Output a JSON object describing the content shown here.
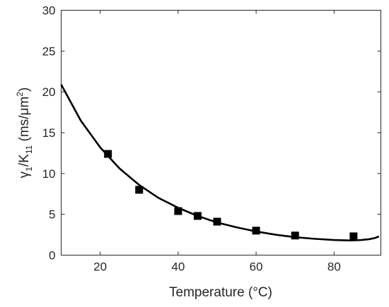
{
  "chart_data": {
    "type": "scatter",
    "xlabel": "Temperature (°C)",
    "ylabel": {
      "gamma": "γ",
      "gamma_sub": "1",
      "slash_k": "/K",
      "k_sub": "11",
      "unit_open": " (ms/",
      "mu": "μ",
      "unit_m": "m",
      "unit_sup": "2",
      "unit_close": ")"
    },
    "xlim": [
      10,
      92
    ],
    "ylim": [
      0,
      30
    ],
    "x_ticks": [
      20,
      40,
      60,
      80
    ],
    "x_tick_labels": [
      "20",
      "40",
      "60",
      "80"
    ],
    "y_ticks": [
      0,
      5,
      10,
      15,
      20,
      25,
      30
    ],
    "y_tick_labels": [
      "0",
      "5",
      "10",
      "15",
      "20",
      "25",
      "30"
    ],
    "grid": false,
    "series": [
      {
        "kind": "scatter",
        "marker": "square",
        "color": "#000000",
        "x": [
          22,
          30,
          40,
          45,
          50,
          60,
          70,
          85
        ],
        "y": [
          12.4,
          8.0,
          5.4,
          4.8,
          4.1,
          3.0,
          2.4,
          2.3
        ]
      },
      {
        "kind": "line",
        "color": "#000000",
        "x": [
          10,
          15,
          20,
          25,
          30,
          35,
          40,
          45,
          50,
          55,
          60,
          65,
          70,
          75,
          80,
          84,
          87,
          89,
          90.5,
          91.5
        ],
        "y": [
          20.9,
          16.5,
          13.2,
          10.6,
          8.6,
          7.0,
          5.8,
          4.8,
          4.0,
          3.4,
          2.9,
          2.5,
          2.2,
          2.0,
          1.85,
          1.8,
          1.85,
          1.95,
          2.1,
          2.3
        ]
      }
    ]
  }
}
